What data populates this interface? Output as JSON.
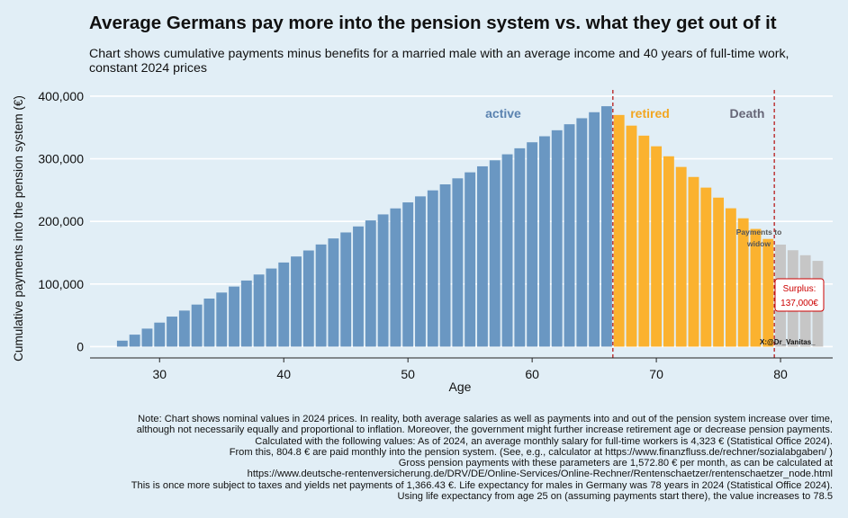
{
  "title": "Average Germans pay more into the pension system vs. what they get out of it",
  "subtitle": "Chart shows cumulative payments minus benefits for a married male with an average income and 40 years of full-time work, constant 2024 prices",
  "chart_data": {
    "type": "bar",
    "xlabel": "Age",
    "ylabel": "Cumulative payments into the pension system (€)",
    "xlim": [
      24.4,
      84.2
    ],
    "ylim": [
      -18000,
      410000
    ],
    "x_ticks": [
      30,
      40,
      50,
      60,
      70,
      80
    ],
    "y_ticks": [
      0,
      100000,
      200000,
      300000,
      400000
    ],
    "y_tick_labels": [
      "0",
      "100,000",
      "200,000",
      "300,000",
      "400,000"
    ],
    "grid": true,
    "colors": {
      "active": "#6a97c2",
      "retired": "#fbb22f",
      "widow": "#c6c6c6",
      "vline": "#b71c1c",
      "surplus": "#cc0000"
    },
    "series": [
      {
        "name": "active",
        "x": [
          27,
          28,
          29,
          30,
          31,
          32,
          33,
          34,
          35,
          36,
          37,
          38,
          39,
          40,
          41,
          42,
          43,
          44,
          45,
          46,
          47,
          48,
          49,
          50,
          51,
          52,
          53,
          54,
          55,
          56,
          57,
          58,
          59,
          60,
          61,
          62,
          63,
          64,
          65,
          66
        ],
        "values": [
          9600,
          19200,
          28800,
          38400,
          48000,
          57600,
          67200,
          76800,
          86400,
          96000,
          105600,
          115200,
          124800,
          134400,
          144000,
          153600,
          163200,
          172800,
          182400,
          192000,
          201600,
          211200,
          220800,
          230400,
          240000,
          249600,
          259200,
          268800,
          278400,
          288000,
          297600,
          307200,
          316800,
          326400,
          336000,
          345600,
          355200,
          364800,
          374400,
          384000
        ]
      },
      {
        "name": "retired",
        "x": [
          67,
          68,
          69,
          70,
          71,
          72,
          73,
          74,
          75,
          76,
          77,
          78,
          79
        ],
        "values": [
          370000,
          353000,
          337000,
          320000,
          304000,
          287000,
          271000,
          254000,
          238000,
          221000,
          205000,
          188000,
          172000
        ]
      },
      {
        "name": "widow",
        "x": [
          80,
          81,
          82,
          83
        ],
        "values": [
          163000,
          154000,
          146000,
          137000
        ]
      }
    ],
    "vlines": [
      66.5,
      79.5
    ],
    "annotations": {
      "active": "active",
      "retired": "retired",
      "death": "Death",
      "widow_line1": "Payments to",
      "widow_line2": "widow",
      "surplus_line1": "Surplus:",
      "surplus_line2": "137,000€",
      "credit": "X:@Dr_Vanitas_"
    }
  },
  "notes": [
    "Note: Chart shows nominal values in 2024 prices. In reality, both average salaries as well as payments into and out of the pension system increase over time,",
    "although not necessarily equally and proportional to inflation. Moreover, the government might further increase retirement age or decrease pension payments.",
    "Calculated with the following values: As of 2024, an average monthly salary for full-time workers is 4,323 € (Statistical Office 2024).",
    "From this, 804.8 € are paid monthly into the pension system. (See, e.g., calculator at https://www.finanzfluss.de/rechner/sozialabgaben/ )",
    "Gross pension payments with these parameters are 1,572.80 € per month, as can be calculated at",
    "https://www.deutsche-rentenversicherung.de/DRV/DE/Online-Services/Online-Rechner/Rentenschaetzer/rentenschaetzer_node.html",
    "This is once more subject to taxes and yields net payments of 1,366.43 €. Life expectancy for males in Germany was 78 years in 2024 (Statistical Office 2024).",
    "Using life expectancy from age 25 on (assuming payments start there), the value increases to 78.5"
  ]
}
